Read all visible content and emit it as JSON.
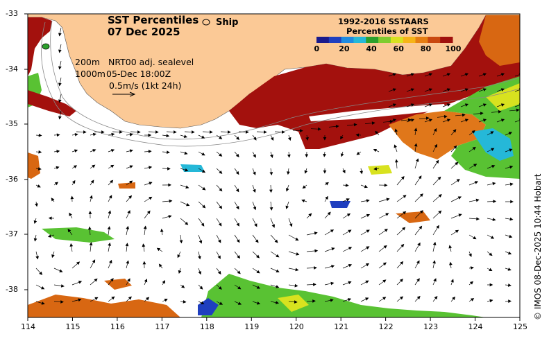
{
  "map": {
    "title_line1": "SST Percentiles",
    "title_line2": "07 Dec 2025",
    "ship_label": "Ship",
    "legend": {
      "title_line1": "1992-2016 SSTAARS",
      "title_line2": "Percentiles of SST",
      "ticks": [
        "0",
        "20",
        "40",
        "60",
        "80",
        "100"
      ],
      "colors": [
        "#1a1a8c",
        "#1f3fbf",
        "#1f8be0",
        "#25b8d8",
        "#2ca02c",
        "#7fcc2e",
        "#d8e21f",
        "#f6b417",
        "#e67e12",
        "#c9480f",
        "#a0100d"
      ]
    },
    "contour_labels": [
      "200m",
      "1000m"
    ],
    "product": "NRT00 adj. sealevel",
    "valid_time": "05-Dec 18:00Z",
    "scale_text": "0.5m/s (1kt 24h)",
    "credit": "© IMOS 08-Dec-2025 10:44 Hobart",
    "x_ticks": [
      "114",
      "115",
      "116",
      "117",
      "118",
      "119",
      "120",
      "121",
      "122",
      "123",
      "124",
      "125"
    ],
    "y_ticks": [
      "-33",
      "-34",
      "-35",
      "-36",
      "-37",
      "-38"
    ],
    "colors": {
      "land": "#fbc996",
      "ocean": "#ffffff",
      "hot": "#a3110d",
      "warm": "#d86712",
      "mid": "#59c233",
      "cool": "#1f8be0"
    }
  }
}
